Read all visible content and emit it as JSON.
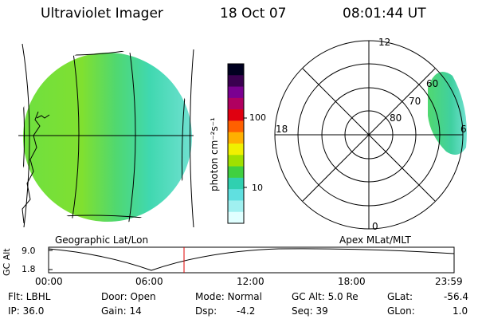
{
  "header": {
    "instrument": "Ultraviolet Imager",
    "date": "18 Oct 07",
    "time": "08:01:44 UT"
  },
  "colorbar": {
    "label": "photon cm⁻²s⁻¹",
    "ticks": [
      "100",
      "10"
    ],
    "colors": [
      "#000020",
      "#3a0050",
      "#7a0090",
      "#b00060",
      "#e00010",
      "#ff6000",
      "#ffb000",
      "#f0f000",
      "#a0e000",
      "#40d040",
      "#30d0b0",
      "#60e0e0",
      "#a0f0f0",
      "#e0ffff"
    ]
  },
  "geo_map": {
    "caption": "Geographic Lat/Lon"
  },
  "polar_map": {
    "caption": "Apex MLat/MLT",
    "mlt_labels": {
      "top": "12",
      "left": "18",
      "right": "6",
      "bottom": "0"
    },
    "lat_labels": [
      "60",
      "70",
      "80"
    ]
  },
  "timeline": {
    "ylabel": "GC Alt",
    "yticks": [
      "9.0",
      "1.8"
    ],
    "xticks": [
      "00:00",
      "06:00",
      "12:00",
      "18:00",
      "23:59"
    ],
    "marker_fraction": 0.334,
    "marker_color": "#e00000"
  },
  "info": {
    "flt": "Flt: LBHL",
    "ip": "IP: 36.0",
    "door": "Door: Open",
    "gain": "Gain: 14",
    "mode": "Mode: Normal",
    "dsp": "Dsp:",
    "dsp_value": "-4.2",
    "gc_alt": "GC Alt: 5.0 Re",
    "seq": "Seq: 39",
    "glat": "GLat:",
    "glat_value": "-56.4",
    "glon": "GLon:",
    "glon_value": "1.0"
  }
}
